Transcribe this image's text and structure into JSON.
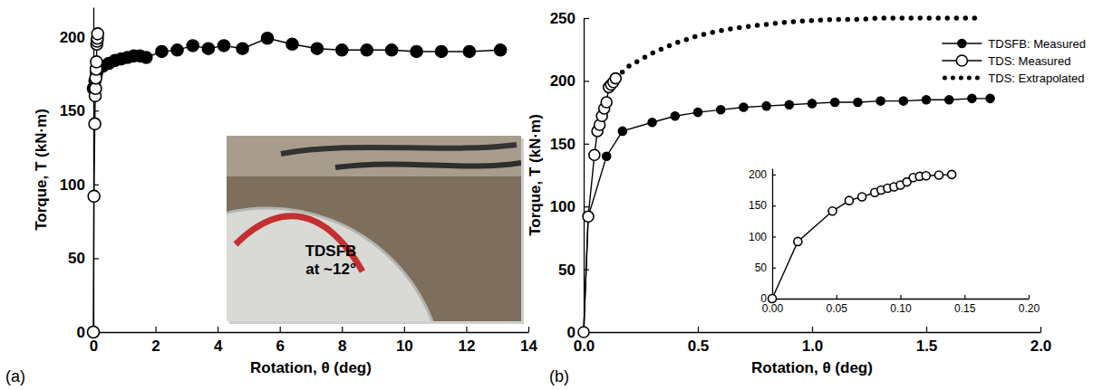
{
  "chart_data": [
    {
      "type": "line",
      "panel_label": "(a)",
      "x_label": "Rotation, θ (deg)",
      "y_label": "Torque, T (kN·m)",
      "xlim": [
        0,
        14
      ],
      "xticks": [
        0,
        2,
        4,
        6,
        8,
        10,
        12,
        14
      ],
      "ylim": [
        0,
        220
      ],
      "yticks": [
        0,
        50,
        100,
        150,
        200
      ],
      "annotation": "TDSFB at ~12°",
      "series": [
        {
          "color": "#000000",
          "marker": "filled circle",
          "line_style": "solid",
          "x": [
            0,
            0.05,
            0.1,
            0.15,
            0.3,
            0.5,
            0.7,
            0.9,
            1.1,
            1.3,
            1.5,
            1.7,
            2.2,
            2.7,
            3.2,
            3.7,
            4.2,
            4.8,
            5.6,
            6.4,
            7.2,
            8,
            8.8,
            9.6,
            10.4,
            11.2,
            12.1,
            13.1
          ],
          "values": [
            165,
            170,
            175,
            178,
            180,
            182,
            184,
            185,
            186,
            187,
            187,
            186,
            190,
            191,
            194,
            192,
            194,
            192,
            199,
            195,
            192,
            191,
            191,
            191,
            190,
            190,
            190,
            191
          ]
        },
        {
          "color": "#000000",
          "marker": "open circle",
          "line_style": "solid",
          "x": [
            0,
            0.02,
            0.047,
            0.06,
            0.07,
            0.08,
            0.09,
            0.1,
            0.11,
            0.12,
            0.13,
            0.14
          ],
          "values": [
            0,
            92,
            141,
            160,
            165,
            172,
            178,
            183,
            195,
            197,
            199,
            202
          ]
        }
      ]
    },
    {
      "type": "line",
      "panel_label": "(b)",
      "x_label": "Rotation, θ (deg)",
      "y_label": "Torque, T (kN·m)",
      "xlim": [
        0,
        2
      ],
      "xticks": [
        {
          "value": 0,
          "label": "0.0"
        },
        {
          "value": 0.5,
          "label": "0.5"
        },
        {
          "value": 1,
          "label": "1.0"
        },
        {
          "value": 1.5,
          "label": "1.5"
        },
        {
          "value": 2,
          "label": "2.0"
        }
      ],
      "ylim": [
        0,
        250
      ],
      "yticks": [
        0,
        50,
        100,
        150,
        200,
        250
      ],
      "legend": "top right",
      "series": [
        {
          "name": "TDS: Extrapolated",
          "color": "#000000",
          "marker": "none",
          "line_style": "dotted",
          "x": [
            0.14,
            0.2,
            0.3,
            0.4,
            0.5,
            0.6,
            0.7,
            0.8,
            0.9,
            1.0,
            1.1,
            1.2,
            1.3,
            1.4,
            1.5,
            1.6,
            1.75
          ],
          "values": [
            202,
            212,
            222,
            230,
            236,
            240,
            243,
            245,
            247,
            248,
            249,
            249,
            250,
            250,
            250,
            250,
            250
          ]
        },
        {
          "name": "TDSFB: Measured",
          "color": "#000000",
          "marker": "filled circle",
          "line_style": "solid",
          "x": [
            0,
            0.02,
            0.1,
            0.17,
            0.3,
            0.4,
            0.5,
            0.6,
            0.7,
            0.8,
            0.9,
            1.0,
            1.1,
            1.2,
            1.3,
            1.4,
            1.5,
            1.6,
            1.7,
            1.78
          ],
          "values": [
            0,
            92,
            140,
            160,
            167,
            172,
            175,
            177,
            179,
            180,
            181,
            182,
            183,
            183,
            184,
            184,
            185,
            185,
            186,
            186
          ]
        },
        {
          "name": "TDS: Measured",
          "color": "#000000",
          "marker": "open circle",
          "line_style": "solid",
          "x": [
            0,
            0.02,
            0.047,
            0.06,
            0.07,
            0.08,
            0.09,
            0.1,
            0.11,
            0.12,
            0.13,
            0.14
          ],
          "values": [
            0,
            92,
            141,
            160,
            165,
            172,
            178,
            183,
            195,
            197,
            199,
            202
          ]
        }
      ]
    },
    {
      "type": "line",
      "xlim": [
        0,
        0.2
      ],
      "xticks": [
        {
          "value": 0,
          "label": "0.00"
        },
        {
          "value": 0.05,
          "label": "0.05"
        },
        {
          "value": 0.1,
          "label": "0.10"
        },
        {
          "value": 0.15,
          "label": "0.15"
        },
        {
          "value": 0.2,
          "label": "0.20"
        }
      ],
      "ylim": [
        0,
        210
      ],
      "yticks": [
        0,
        50,
        100,
        150,
        200
      ],
      "series": [
        {
          "color": "#000000",
          "marker": "open circle",
          "line_style": "solid",
          "x": [
            0,
            0.02,
            0.047,
            0.06,
            0.07,
            0.08,
            0.085,
            0.09,
            0.095,
            0.1,
            0.105,
            0.11,
            0.115,
            0.12,
            0.13,
            0.14
          ],
          "values": [
            0,
            92,
            141,
            158,
            164,
            171,
            175,
            178,
            180,
            183,
            188,
            195,
            197,
            198,
            199,
            200
          ]
        }
      ]
    }
  ]
}
